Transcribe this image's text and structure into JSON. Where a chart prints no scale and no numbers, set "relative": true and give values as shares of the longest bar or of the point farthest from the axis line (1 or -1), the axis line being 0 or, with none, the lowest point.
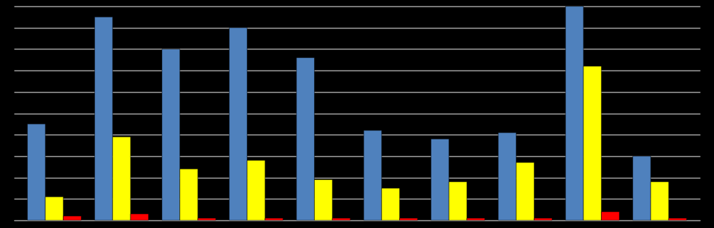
{
  "chart_data": {
    "type": "bar",
    "relative": true,
    "grid": "y",
    "legend": false,
    "categories": [
      null,
      null,
      null,
      null,
      null,
      null,
      null,
      null,
      null,
      null
    ],
    "series": [
      {
        "color": "#4f81bd",
        "values": [
          0.45,
          0.95,
          0.8,
          0.9,
          0.76,
          0.42,
          0.38,
          0.41,
          1,
          0.3
        ]
      },
      {
        "color": "#ffff00",
        "values": [
          0.11,
          0.39,
          0.24,
          0.28,
          0.19,
          0.15,
          0.18,
          0.27,
          0.72,
          0.18
        ]
      },
      {
        "color": "#ff0000",
        "values": [
          0.02,
          0.03,
          0.01,
          0.01,
          0.01,
          0.01,
          0.01,
          0.01,
          0.04,
          0.01
        ]
      }
    ]
  }
}
